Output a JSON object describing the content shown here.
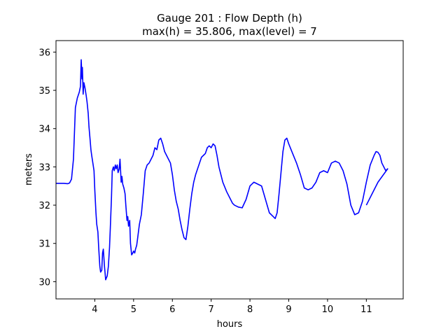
{
  "chart_data": {
    "type": "line",
    "title_line1": "Gauge 201 : Flow Depth (h)",
    "title_line2": "max(h) =  35.806,    max(level) = 7",
    "xlabel": "hours",
    "ylabel": "meters",
    "xlim": [
      3.0,
      11.95
    ],
    "ylim": [
      29.55,
      36.3
    ],
    "x_ticks": [
      4,
      5,
      6,
      7,
      8,
      9,
      10,
      11
    ],
    "x_tick_labels": [
      "4",
      "5",
      "6",
      "7",
      "8",
      "9",
      "10",
      "11"
    ],
    "y_ticks": [
      30,
      31,
      32,
      33,
      34,
      35,
      36
    ],
    "y_tick_labels": [
      "30",
      "31",
      "32",
      "33",
      "34",
      "35",
      "36"
    ],
    "grid": false,
    "series": [
      {
        "color": "#0000ff",
        "x": [
          3.0,
          3.2,
          3.3,
          3.35,
          3.4,
          3.45,
          3.5,
          3.55,
          3.6,
          3.63,
          3.65,
          3.67,
          3.68,
          3.7,
          3.72,
          3.75,
          3.78,
          3.8,
          3.83,
          3.85,
          3.88,
          3.9,
          3.92,
          3.95,
          3.98,
          4.0,
          4.03,
          4.05,
          4.08,
          4.1,
          4.13,
          4.15,
          4.18,
          4.2,
          4.22,
          4.25,
          4.28,
          4.3,
          4.32,
          4.35,
          4.38,
          4.4,
          4.43,
          4.45,
          4.48,
          4.5,
          4.53,
          4.55,
          4.58,
          4.6,
          4.63,
          4.65,
          4.68,
          4.7,
          4.72,
          4.75,
          4.78,
          4.8,
          4.83,
          4.85,
          4.87,
          4.9,
          4.92,
          4.95,
          4.98,
          5.0,
          5.03,
          5.05,
          5.08,
          5.1,
          5.15,
          5.2,
          5.25,
          5.3,
          5.35,
          5.4,
          5.45,
          5.5,
          5.55,
          5.6,
          5.65,
          5.7,
          5.75,
          5.8,
          5.85,
          5.9,
          5.95,
          6.0,
          6.05,
          6.1,
          6.15,
          6.2,
          6.25,
          6.3,
          6.35,
          6.4,
          6.45,
          6.5,
          6.55,
          6.6,
          6.65,
          6.7,
          6.75,
          6.8,
          6.85,
          6.9,
          6.95,
          7.0,
          7.05,
          7.1,
          7.15,
          7.2,
          7.3,
          7.4,
          7.5,
          7.55,
          7.6,
          7.7,
          7.8,
          7.9,
          8.0,
          8.1,
          8.2,
          8.3,
          8.4,
          8.5,
          8.6,
          8.65,
          8.7,
          8.75,
          8.8,
          8.85,
          8.9,
          8.95,
          9.0,
          9.1,
          9.2,
          9.3,
          9.4,
          9.5,
          9.6,
          9.7,
          9.8,
          9.9,
          10.0,
          10.1,
          10.2,
          10.3,
          10.4,
          10.5,
          10.6,
          10.7,
          10.8,
          10.9,
          11.0,
          11.1,
          11.2,
          11.25,
          11.3,
          11.35,
          11.4,
          11.5,
          11.55,
          11.3,
          11.1,
          11.0
        ],
        "y": [
          32.57,
          32.57,
          32.56,
          32.58,
          32.68,
          33.2,
          34.55,
          34.8,
          34.95,
          35.1,
          35.8,
          35.3,
          35.6,
          34.9,
          35.2,
          35.05,
          34.85,
          34.7,
          34.4,
          34.05,
          33.7,
          33.45,
          33.3,
          33.1,
          32.9,
          32.4,
          31.8,
          31.5,
          31.3,
          30.9,
          30.4,
          30.25,
          30.3,
          30.75,
          30.85,
          30.4,
          30.05,
          30.1,
          30.15,
          30.4,
          30.9,
          31.4,
          32.2,
          32.9,
          33.0,
          32.9,
          33.05,
          32.95,
          33.05,
          32.85,
          32.95,
          33.2,
          32.6,
          32.75,
          32.55,
          32.45,
          32.3,
          32.0,
          31.6,
          31.7,
          31.45,
          31.6,
          31.0,
          30.7,
          30.75,
          30.8,
          30.75,
          30.85,
          30.95,
          31.1,
          31.5,
          31.75,
          32.3,
          32.9,
          33.05,
          33.1,
          33.2,
          33.3,
          33.5,
          33.45,
          33.7,
          33.75,
          33.6,
          33.4,
          33.3,
          33.2,
          33.1,
          32.8,
          32.4,
          32.1,
          31.9,
          31.6,
          31.35,
          31.15,
          31.1,
          31.45,
          31.9,
          32.3,
          32.6,
          32.8,
          32.95,
          33.1,
          33.25,
          33.3,
          33.35,
          33.5,
          33.55,
          33.5,
          33.6,
          33.55,
          33.3,
          33.0,
          32.6,
          32.35,
          32.15,
          32.05,
          32.0,
          31.95,
          31.93,
          32.15,
          32.5,
          32.6,
          32.55,
          32.5,
          32.15,
          31.8,
          31.7,
          31.65,
          31.8,
          32.3,
          32.85,
          33.4,
          33.7,
          33.75,
          33.6,
          33.35,
          33.1,
          32.8,
          32.45,
          32.4,
          32.45,
          32.6,
          32.85,
          32.9,
          32.85,
          33.1,
          33.15,
          33.1,
          32.9,
          32.55,
          32.0,
          31.75,
          31.8,
          32.1,
          32.6,
          33.05,
          33.3,
          33.4,
          33.38,
          33.3,
          33.1,
          32.9,
          32.95,
          32.6,
          32.2,
          32.0
        ]
      }
    ]
  }
}
